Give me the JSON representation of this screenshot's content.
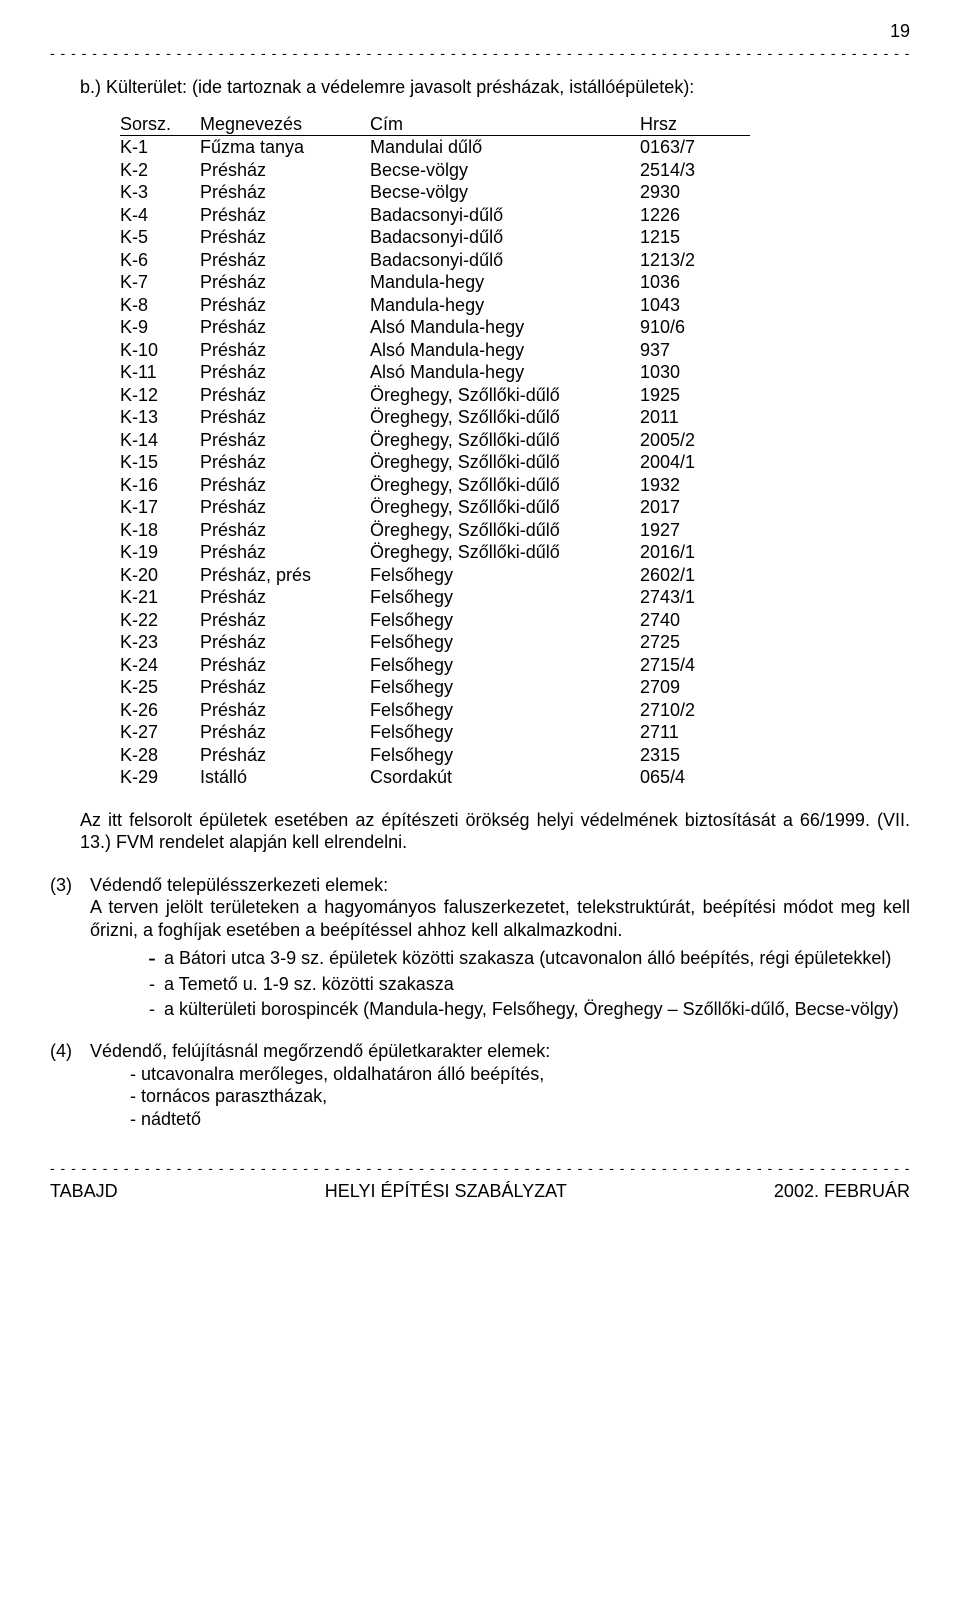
{
  "page_number": "19",
  "intro": "b.)  Külterület: (ide tartoznak a védelemre javasolt présházak, istállóépületek):",
  "table": {
    "columns": [
      "Sorsz.",
      "Megnevezés",
      "Cím",
      "Hrsz"
    ],
    "rows": [
      [
        "K-1",
        "Fűzma tanya",
        "Mandulai dűlő",
        "0163/7"
      ],
      [
        "K-2",
        "Présház",
        "Becse-völgy",
        "2514/3"
      ],
      [
        "K-3",
        "Présház",
        "Becse-völgy",
        "2930"
      ],
      [
        "K-4",
        "Présház",
        "Badacsonyi-dűlő",
        "1226"
      ],
      [
        "K-5",
        "Présház",
        "Badacsonyi-dűlő",
        "1215"
      ],
      [
        "K-6",
        "Présház",
        "Badacsonyi-dűlő",
        "1213/2"
      ],
      [
        "K-7",
        "Présház",
        "Mandula-hegy",
        "1036"
      ],
      [
        "K-8",
        "Présház",
        "Mandula-hegy",
        "1043"
      ],
      [
        "K-9",
        "Présház",
        "Alsó Mandula-hegy",
        "910/6"
      ],
      [
        "K-10",
        "Présház",
        "Alsó Mandula-hegy",
        "937"
      ],
      [
        "K-11",
        "Présház",
        "Alsó Mandula-hegy",
        "1030"
      ],
      [
        "K-12",
        "Présház",
        "Öreghegy, Szőllőki-dűlő",
        "1925"
      ],
      [
        "K-13",
        "Présház",
        "Öreghegy, Szőllőki-dűlő",
        "2011"
      ],
      [
        "K-14",
        "Présház",
        "Öreghegy, Szőllőki-dűlő",
        "2005/2"
      ],
      [
        "K-15",
        "Présház",
        "Öreghegy, Szőllőki-dűlő",
        "2004/1"
      ],
      [
        "K-16",
        "Présház",
        "Öreghegy, Szőllőki-dűlő",
        "1932"
      ],
      [
        "K-17",
        "Présház",
        "Öreghegy, Szőllőki-dűlő",
        "2017"
      ],
      [
        "K-18",
        "Présház",
        "Öreghegy, Szőllőki-dűlő",
        "1927"
      ],
      [
        "K-19",
        "Présház",
        "Öreghegy, Szőllőki-dűlő",
        "2016/1"
      ],
      [
        "K-20",
        "Présház, prés",
        "Felsőhegy",
        "2602/1"
      ],
      [
        "K-21",
        "Présház",
        "Felsőhegy",
        "2743/1"
      ],
      [
        "K-22",
        "Présház",
        "Felsőhegy",
        "2740"
      ],
      [
        "K-23",
        "Présház",
        "Felsőhegy",
        "2725"
      ],
      [
        "K-24",
        "Présház",
        "Felsőhegy",
        "2715/4"
      ],
      [
        "K-25",
        "Présház",
        "Felsőhegy",
        "2709"
      ],
      [
        "K-26",
        "Présház",
        "Felsőhegy",
        "2710/2"
      ],
      [
        "K-27",
        "Présház",
        "Felsőhegy",
        "2711"
      ],
      [
        "K-28",
        "Présház",
        "Felsőhegy",
        "2315"
      ],
      [
        "K-29",
        "Istálló",
        "Csordakút",
        "065/4"
      ]
    ]
  },
  "after_table": "Az itt felsorolt épületek esetében az építészeti örökség helyi védelmének biztosítását a 66/1999. (VII. 13.) FVM rendelet alapján kell elrendelni.",
  "section3": {
    "num": "(3)",
    "title": "Védendő településszerkezeti elemek:",
    "body": "A terven jelölt területeken a hagyományos faluszerkezetet, telekstruktúrát, beépítési módot meg kell őrizni, a foghíjak esetében a beépítéssel ahhoz kell alkalmazkodni.",
    "bullets": [
      "a Bátori utca 3-9 sz. épületek közötti szakasza (utcavonalon álló beépítés, régi épületekkel)",
      "a Temető u. 1-9 sz. közötti szakasza",
      "a külterületi borospincék (Mandula-hegy, Felsőhegy, Öreghegy – Szőllőki-dűlő, Becse-völgy)"
    ]
  },
  "section4": {
    "num": "(4)",
    "title": "Védendő, felújításnál megőrzendő épületkarakter elemek:",
    "lines": [
      "- utcavonalra merőleges, oldalhatáron álló beépítés,",
      "- tornácos parasztházak,",
      "- nádtető"
    ]
  },
  "footer": {
    "left": "TABAJD",
    "center": "HELYI ÉPÍTÉSI SZABÁLYZAT",
    "right": "2002. FEBRUÁR"
  }
}
